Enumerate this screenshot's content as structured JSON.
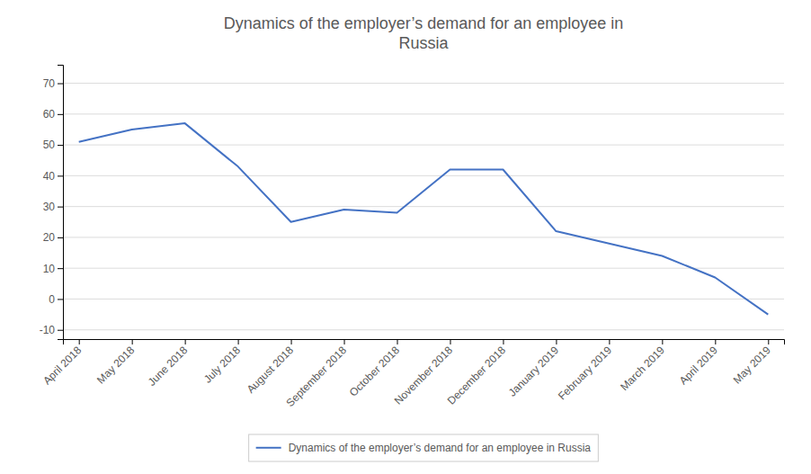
{
  "chart_data": {
    "type": "line",
    "title": "Dynamics of the employer’s demand for an employee in\nRussia",
    "categories": [
      "April 2018",
      "May 2018",
      "June 2018",
      "July 2018",
      "August 2018",
      "September 2018",
      "October 2018",
      "November 2018",
      "December 2018",
      "January 2019",
      "February 2019",
      "March 2019",
      "April 2019",
      "May 2019"
    ],
    "series": [
      {
        "name": "Dynamics of the employer’s demand for an employee in Russia",
        "color": "#4472C4",
        "values": [
          51,
          55,
          57,
          43,
          25,
          29,
          28,
          42,
          42,
          22,
          18,
          14,
          7,
          -5
        ]
      }
    ],
    "ylim": [
      -13,
      76
    ],
    "yticks": [
      -10,
      0,
      10,
      20,
      30,
      40,
      50,
      60,
      70
    ],
    "grid": true,
    "legend": "bottom"
  }
}
